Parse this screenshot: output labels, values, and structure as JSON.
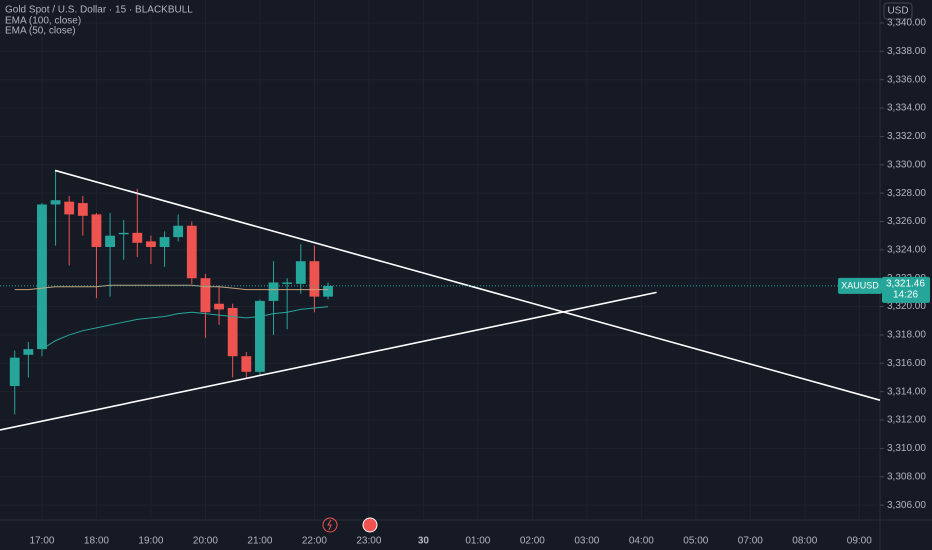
{
  "chart_data": {
    "type": "candlestick",
    "title": "Gold Spot / U.S. Dollar · 15 · BLACKBULL",
    "currency": "USD",
    "symbol": "XAUUSD",
    "last_price": {
      "value": 3321.46,
      "label": "3,321.46"
    },
    "countdown": "14:26",
    "up_color": "#26a69a",
    "down_color": "#ef5350",
    "x": [
      16.5,
      16.75,
      17.0,
      17.25,
      17.5,
      17.75,
      18.0,
      18.25,
      18.5,
      18.75,
      19.0,
      19.25,
      19.5,
      19.75,
      20.0,
      20.25,
      20.5,
      20.75,
      21.0,
      21.25,
      21.5,
      21.75,
      22.0,
      22.25
    ],
    "open": [
      3314.4,
      3316.6,
      3317.0,
      3327.2,
      3327.4,
      3327.3,
      3326.5,
      3324.2,
      3325.1,
      3325.2,
      3324.6,
      3324.2,
      3324.9,
      3325.7,
      3322.0,
      3320.2,
      3319.9,
      3316.5,
      3315.4,
      3320.4,
      3321.6,
      3321.6,
      3323.2,
      3320.7
    ],
    "high": [
      3316.9,
      3317.5,
      3327.3,
      3329.6,
      3327.8,
      3327.8,
      3326.6,
      3326.6,
      3326.1,
      3328.3,
      3325.0,
      3325.3,
      3326.5,
      3326.0,
      3322.3,
      3321.5,
      3320.2,
      3316.8,
      3320.5,
      3323.2,
      3322.0,
      3324.4,
      3324.3,
      3321.7
    ],
    "low": [
      3312.4,
      3315.0,
      3316.5,
      3324.3,
      3322.9,
      3325.0,
      3320.6,
      3320.7,
      3323.3,
      3323.5,
      3323.0,
      3322.8,
      3324.6,
      3321.6,
      3317.8,
      3318.7,
      3315.0,
      3315.0,
      3315.1,
      3318.0,
      3318.4,
      3320.9,
      3319.6,
      3320.5
    ],
    "close": [
      3316.4,
      3317.0,
      3327.2,
      3327.5,
      3326.5,
      3326.4,
      3324.2,
      3325.0,
      3325.2,
      3324.5,
      3324.2,
      3324.9,
      3325.7,
      3322.0,
      3319.6,
      3319.8,
      3316.5,
      3315.4,
      3320.4,
      3321.7,
      3321.7,
      3323.2,
      3320.7,
      3321.46
    ],
    "series": [
      {
        "name": "EMA (100, close)",
        "color": "#c8a27c",
        "values": [
          3321.2,
          3321.2,
          3321.3,
          3321.4,
          3321.4,
          3321.4,
          3321.4,
          3321.5,
          3321.5,
          3321.5,
          3321.5,
          3321.5,
          3321.5,
          3321.5,
          3321.4,
          3321.4,
          3321.3,
          3321.2,
          3321.2,
          3321.2,
          3321.2,
          3321.2,
          3321.2,
          3321.2
        ]
      },
      {
        "name": "EMA (50, close)",
        "color": "#26a69a",
        "values": [
          null,
          null,
          3317.0,
          3317.6,
          3318.0,
          3318.3,
          3318.5,
          3318.7,
          3318.9,
          3319.1,
          3319.2,
          3319.3,
          3319.5,
          3319.6,
          3319.5,
          3319.4,
          3319.3,
          3319.2,
          3319.3,
          3319.5,
          3319.6,
          3319.8,
          3319.9,
          3320.0
        ]
      }
    ],
    "trendlines": [
      {
        "x": [
          17.24,
          32.38
        ],
        "y": [
          3329.6,
          3313.4
        ]
      },
      {
        "x": [
          16.23,
          28.28
        ],
        "y": [
          3311.3,
          3321.0
        ]
      }
    ],
    "xlim": [
      16.23,
      32.38
    ],
    "ylim": [
      3304.95,
      3341.62
    ],
    "yticks": [
      {
        "value": 3306,
        "label": "3,306.00"
      },
      {
        "value": 3308,
        "label": "3,308.00"
      },
      {
        "value": 3310,
        "label": "3,310.00"
      },
      {
        "value": 3312,
        "label": "3,312.00"
      },
      {
        "value": 3314,
        "label": "3,314.00"
      },
      {
        "value": 3316,
        "label": "3,316.00"
      },
      {
        "value": 3318,
        "label": "3,318.00"
      },
      {
        "value": 3320,
        "label": "3,320.00"
      },
      {
        "value": 3322,
        "label": "3,322.00"
      },
      {
        "value": 3324,
        "label": "3,324.00"
      },
      {
        "value": 3326,
        "label": "3,326.00"
      },
      {
        "value": 3328,
        "label": "3,328.00"
      },
      {
        "value": 3330,
        "label": "3,330.00"
      },
      {
        "value": 3332,
        "label": "3,332.00"
      },
      {
        "value": 3334,
        "label": "3,334.00"
      },
      {
        "value": 3336,
        "label": "3,336.00"
      },
      {
        "value": 3338,
        "label": "3,338.00"
      },
      {
        "value": 3340,
        "label": "3,340.00"
      }
    ],
    "xticks": [
      {
        "value": 17,
        "label": "17:00"
      },
      {
        "value": 18,
        "label": "18:00"
      },
      {
        "value": 19,
        "label": "19:00"
      },
      {
        "value": 20,
        "label": "20:00"
      },
      {
        "value": 21,
        "label": "21:00"
      },
      {
        "value": 22,
        "label": "22:00"
      },
      {
        "value": 23,
        "label": "23:00"
      },
      {
        "value": 24,
        "label": "30"
      },
      {
        "value": 25,
        "label": "01:00"
      },
      {
        "value": 26,
        "label": "02:00"
      },
      {
        "value": 27,
        "label": "03:00"
      },
      {
        "value": 28,
        "label": "04:00"
      },
      {
        "value": 29,
        "label": "05:00"
      },
      {
        "value": 30,
        "label": "07:00"
      },
      {
        "value": 31,
        "label": "08:00"
      },
      {
        "value": 32,
        "label": "09:00"
      }
    ],
    "grid": true
  }
}
